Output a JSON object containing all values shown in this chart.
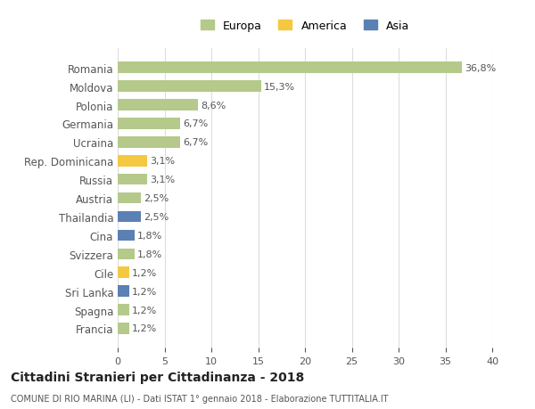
{
  "categories": [
    "Francia",
    "Spagna",
    "Sri Lanka",
    "Cile",
    "Svizzera",
    "Cina",
    "Thailandia",
    "Austria",
    "Russia",
    "Rep. Dominicana",
    "Ucraina",
    "Germania",
    "Polonia",
    "Moldova",
    "Romania"
  ],
  "values": [
    1.2,
    1.2,
    1.2,
    1.2,
    1.8,
    1.8,
    2.5,
    2.5,
    3.1,
    3.1,
    6.7,
    6.7,
    8.6,
    15.3,
    36.8
  ],
  "colors": [
    "#b5c98a",
    "#b5c98a",
    "#5b80b4",
    "#f5c842",
    "#b5c98a",
    "#5b80b4",
    "#5b80b4",
    "#b5c98a",
    "#b5c98a",
    "#f5c842",
    "#b5c98a",
    "#b5c98a",
    "#b5c98a",
    "#b5c98a",
    "#b5c98a"
  ],
  "labels": [
    "1,2%",
    "1,2%",
    "1,2%",
    "1,2%",
    "1,8%",
    "1,8%",
    "2,5%",
    "2,5%",
    "3,1%",
    "3,1%",
    "6,7%",
    "6,7%",
    "8,6%",
    "15,3%",
    "36,8%"
  ],
  "legend": [
    {
      "label": "Europa",
      "color": "#b5c98a"
    },
    {
      "label": "America",
      "color": "#f5c842"
    },
    {
      "label": "Asia",
      "color": "#5b80b4"
    }
  ],
  "xlim": [
    0,
    40
  ],
  "xticks": [
    0,
    5,
    10,
    15,
    20,
    25,
    30,
    35,
    40
  ],
  "title": "Cittadini Stranieri per Cittadinanza - 2018",
  "subtitle": "COMUNE DI RIO MARINA (LI) - Dati ISTAT 1° gennaio 2018 - Elaborazione TUTTITALIA.IT",
  "background_color": "#ffffff",
  "grid_color": "#dddddd",
  "bar_height": 0.6,
  "text_color": "#555555",
  "title_color": "#222222"
}
